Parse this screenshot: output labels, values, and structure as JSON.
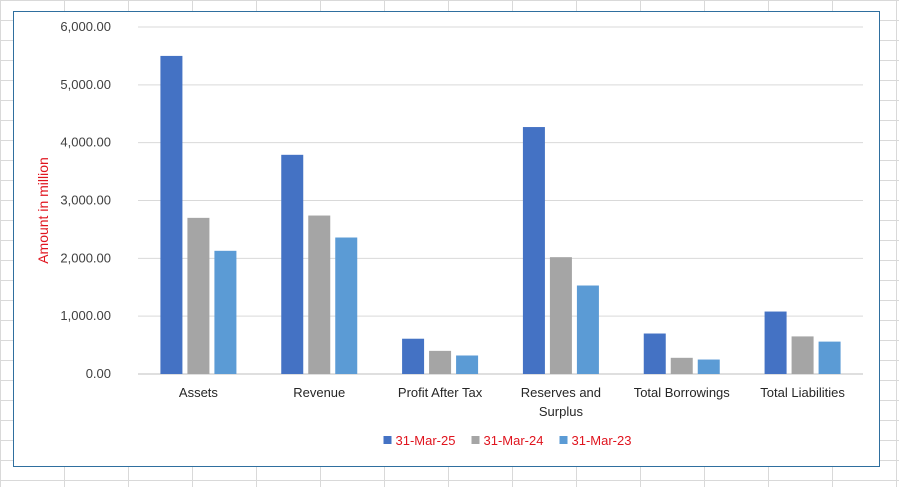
{
  "chart_data": {
    "type": "bar",
    "title": "",
    "xlabel": "",
    "ylabel": "Amount in million",
    "ylabel_color": "#e0141e",
    "categories": [
      "Assets",
      "Revenue",
      "Profit After Tax",
      "Reserves and Surplus",
      "Total Borrowings",
      "Total Liabilities"
    ],
    "category_lines": [
      [
        "Assets"
      ],
      [
        "Revenue"
      ],
      [
        "Profit After Tax"
      ],
      [
        "Reserves and",
        "Surplus"
      ],
      [
        "Total Borrowings"
      ],
      [
        "Total Liabilities"
      ]
    ],
    "series": [
      {
        "name": "31-Mar-25",
        "color": "#4472c4",
        "values": [
          5500,
          3790,
          610,
          4270,
          700,
          1080
        ]
      },
      {
        "name": "31-Mar-24",
        "color": "#a5a5a5",
        "values": [
          2700,
          2740,
          400,
          2020,
          280,
          650
        ]
      },
      {
        "name": "31-Mar-23",
        "color": "#5b9bd5",
        "values": [
          2130,
          2360,
          320,
          1530,
          250,
          560
        ]
      }
    ],
    "ylim": [
      0,
      6000
    ],
    "yticks": [
      0,
      1000,
      2000,
      3000,
      4000,
      5000,
      6000
    ],
    "ytick_labels": [
      "0.00",
      "1,000.00",
      "2,000.00",
      "3,000.00",
      "4,000.00",
      "5,000.00",
      "6,000.00"
    ],
    "grid": true,
    "legend_position": "bottom",
    "legend_text_color": "#e0141e",
    "gridline_color": "#d9d9d9",
    "axis_line_color": "#bfbfbf"
  }
}
